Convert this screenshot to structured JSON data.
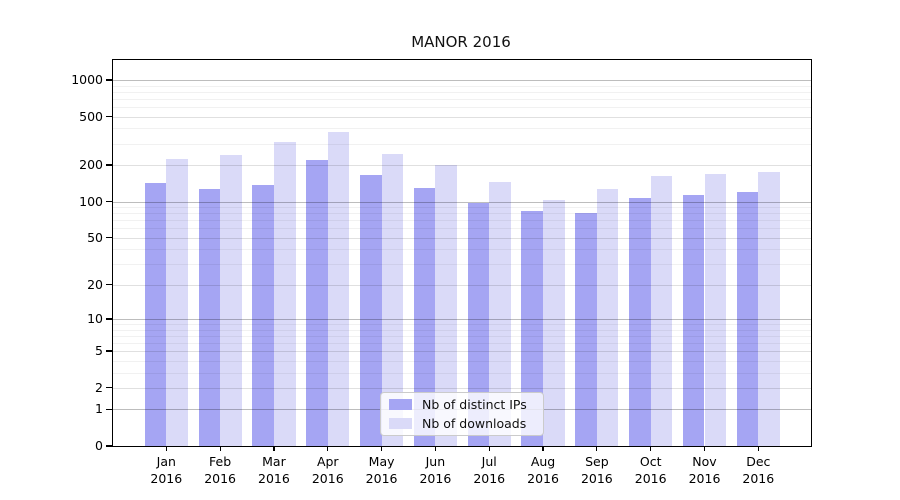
{
  "chart_data": {
    "type": "bar",
    "title": "MANOR 2016",
    "categories": [
      "Jan",
      "Feb",
      "Mar",
      "Apr",
      "May",
      "Jun",
      "Jul",
      "Aug",
      "Sep",
      "Oct",
      "Nov",
      "Dec"
    ],
    "year_label": "2016",
    "series": [
      {
        "name": "Nb of distinct IPs",
        "color": "#a5a5f3",
        "values": [
          141,
          126,
          137,
          222,
          165,
          129,
          98,
          84,
          81,
          107,
          114,
          119
        ]
      },
      {
        "name": "Nb of downloads",
        "color": "#dadaf8",
        "values": [
          225,
          240,
          309,
          371,
          247,
          200,
          145,
          103,
          126,
          163,
          168,
          174
        ]
      }
    ],
    "yscale": "log1p",
    "ytick_labels": [
      0,
      1,
      2,
      5,
      10,
      20,
      50,
      100,
      200,
      500,
      1000
    ],
    "ylim": [
      0,
      1460
    ],
    "grid": "on",
    "legend_position": "lower-center",
    "grid_major_color": "#bdbdbd",
    "grid_minor_color": "#ebebeb",
    "axis_color": "#000000"
  }
}
